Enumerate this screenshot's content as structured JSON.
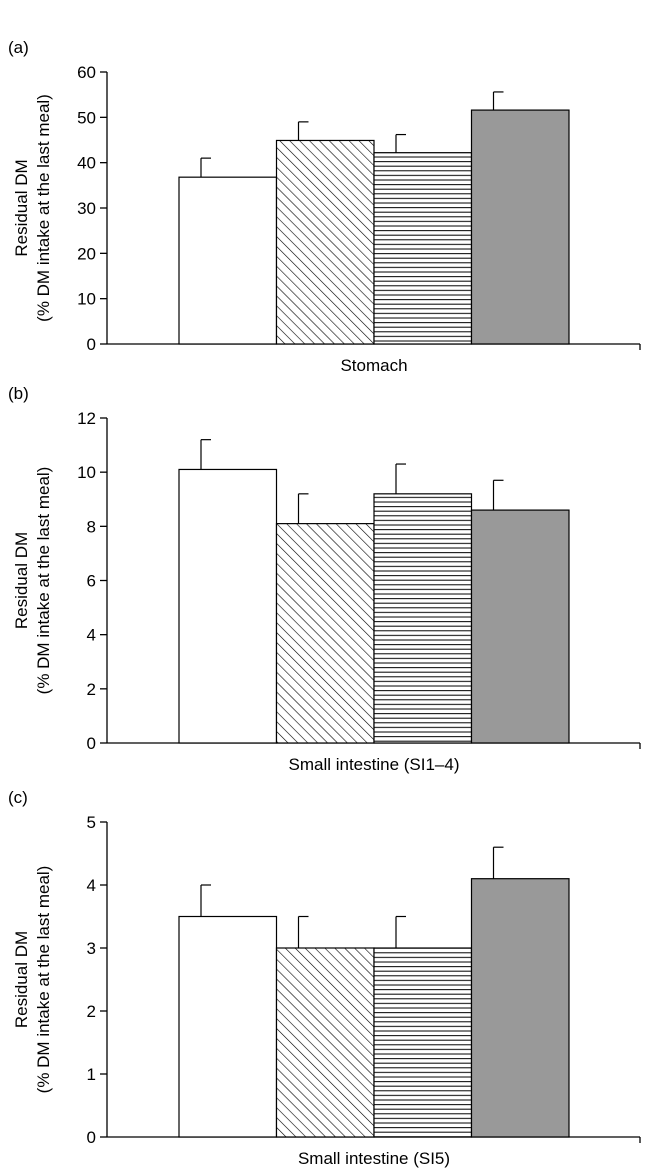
{
  "chart_data": [
    {
      "type": "bar",
      "panel_label": "(a)",
      "xlabel": "Stomach",
      "ylabel_lines": [
        "Residual DM",
        "(% DM intake at the last meal)"
      ],
      "ylim": [
        0,
        60
      ],
      "yticks": [
        0,
        10,
        20,
        30,
        40,
        50,
        60
      ],
      "ytick_labels": [
        "0",
        "10",
        "20",
        "30",
        "40",
        "50",
        "60"
      ],
      "values": [
        36.8,
        44.9,
        42.2,
        51.6
      ],
      "errors": [
        4.2,
        4.1,
        4.0,
        4.0
      ],
      "patterns": [
        "white",
        "diagonal",
        "horizontal",
        "grey"
      ],
      "grid": false,
      "legend": "none"
    },
    {
      "type": "bar",
      "panel_label": "(b)",
      "xlabel": "Small intestine (SI1–4)",
      "ylabel_lines": [
        "Residual DM",
        "(% DM intake at the last meal)"
      ],
      "ylim": [
        0,
        12
      ],
      "yticks": [
        0,
        2,
        4,
        6,
        8,
        10,
        12
      ],
      "ytick_labels": [
        "0",
        "2",
        "4",
        "6",
        "8",
        "10",
        "12"
      ],
      "values": [
        10.1,
        8.1,
        9.2,
        8.6
      ],
      "errors": [
        1.1,
        1.1,
        1.1,
        1.1
      ],
      "patterns": [
        "white",
        "diagonal",
        "horizontal",
        "grey"
      ],
      "grid": false,
      "legend": "none"
    },
    {
      "type": "bar",
      "panel_label": "(c)",
      "xlabel": "Small intestine (SI5)",
      "ylabel_lines": [
        "Residual DM",
        "(% DM intake at the last meal)"
      ],
      "ylim": [
        0,
        5
      ],
      "yticks": [
        0,
        1,
        2,
        3,
        4,
        5
      ],
      "ytick_labels": [
        "0",
        "1",
        "2",
        "3",
        "4",
        "5"
      ],
      "values": [
        3.5,
        3.0,
        3.0,
        4.1
      ],
      "errors": [
        0.5,
        0.5,
        0.5,
        0.5
      ],
      "patterns": [
        "white",
        "diagonal",
        "horizontal",
        "grey"
      ],
      "grid": false,
      "legend": "none"
    }
  ],
  "colors": {
    "grey_fill": "#999999",
    "stroke": "#000000",
    "background": "#ffffff"
  }
}
